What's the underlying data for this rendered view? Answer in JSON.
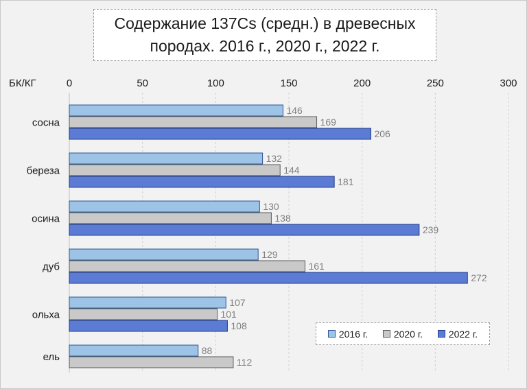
{
  "chart_data": {
    "type": "bar",
    "orientation": "horizontal",
    "title_lines": [
      "Содержание  137Cs  (средн.)  в древесных",
      "породах.  2016 г., 2020 г., 2022 г."
    ],
    "ylabel": "БК/КГ",
    "xlim": [
      0,
      300
    ],
    "xticks": [
      0,
      50,
      100,
      150,
      200,
      250,
      300
    ],
    "grid": true,
    "legend_position": "bottom-right",
    "categories": [
      "сосна",
      "береза",
      "осина",
      "дуб",
      "ольха",
      "ель"
    ],
    "series": [
      {
        "name": "2016 г.",
        "color": "#9dc3e6",
        "edge": "#2f5597",
        "values": [
          146,
          132,
          130,
          129,
          107,
          88
        ]
      },
      {
        "name": "2020 г.",
        "color": "#c9c9c9",
        "edge": "#595959",
        "values": [
          169,
          144,
          138,
          161,
          101,
          112
        ]
      },
      {
        "name": "2022 г.",
        "color": "#5b7bd5",
        "edge": "#1f3c88",
        "values": [
          206,
          181,
          239,
          272,
          108,
          null
        ]
      }
    ],
    "data_label_color": "#7f7f7f"
  }
}
